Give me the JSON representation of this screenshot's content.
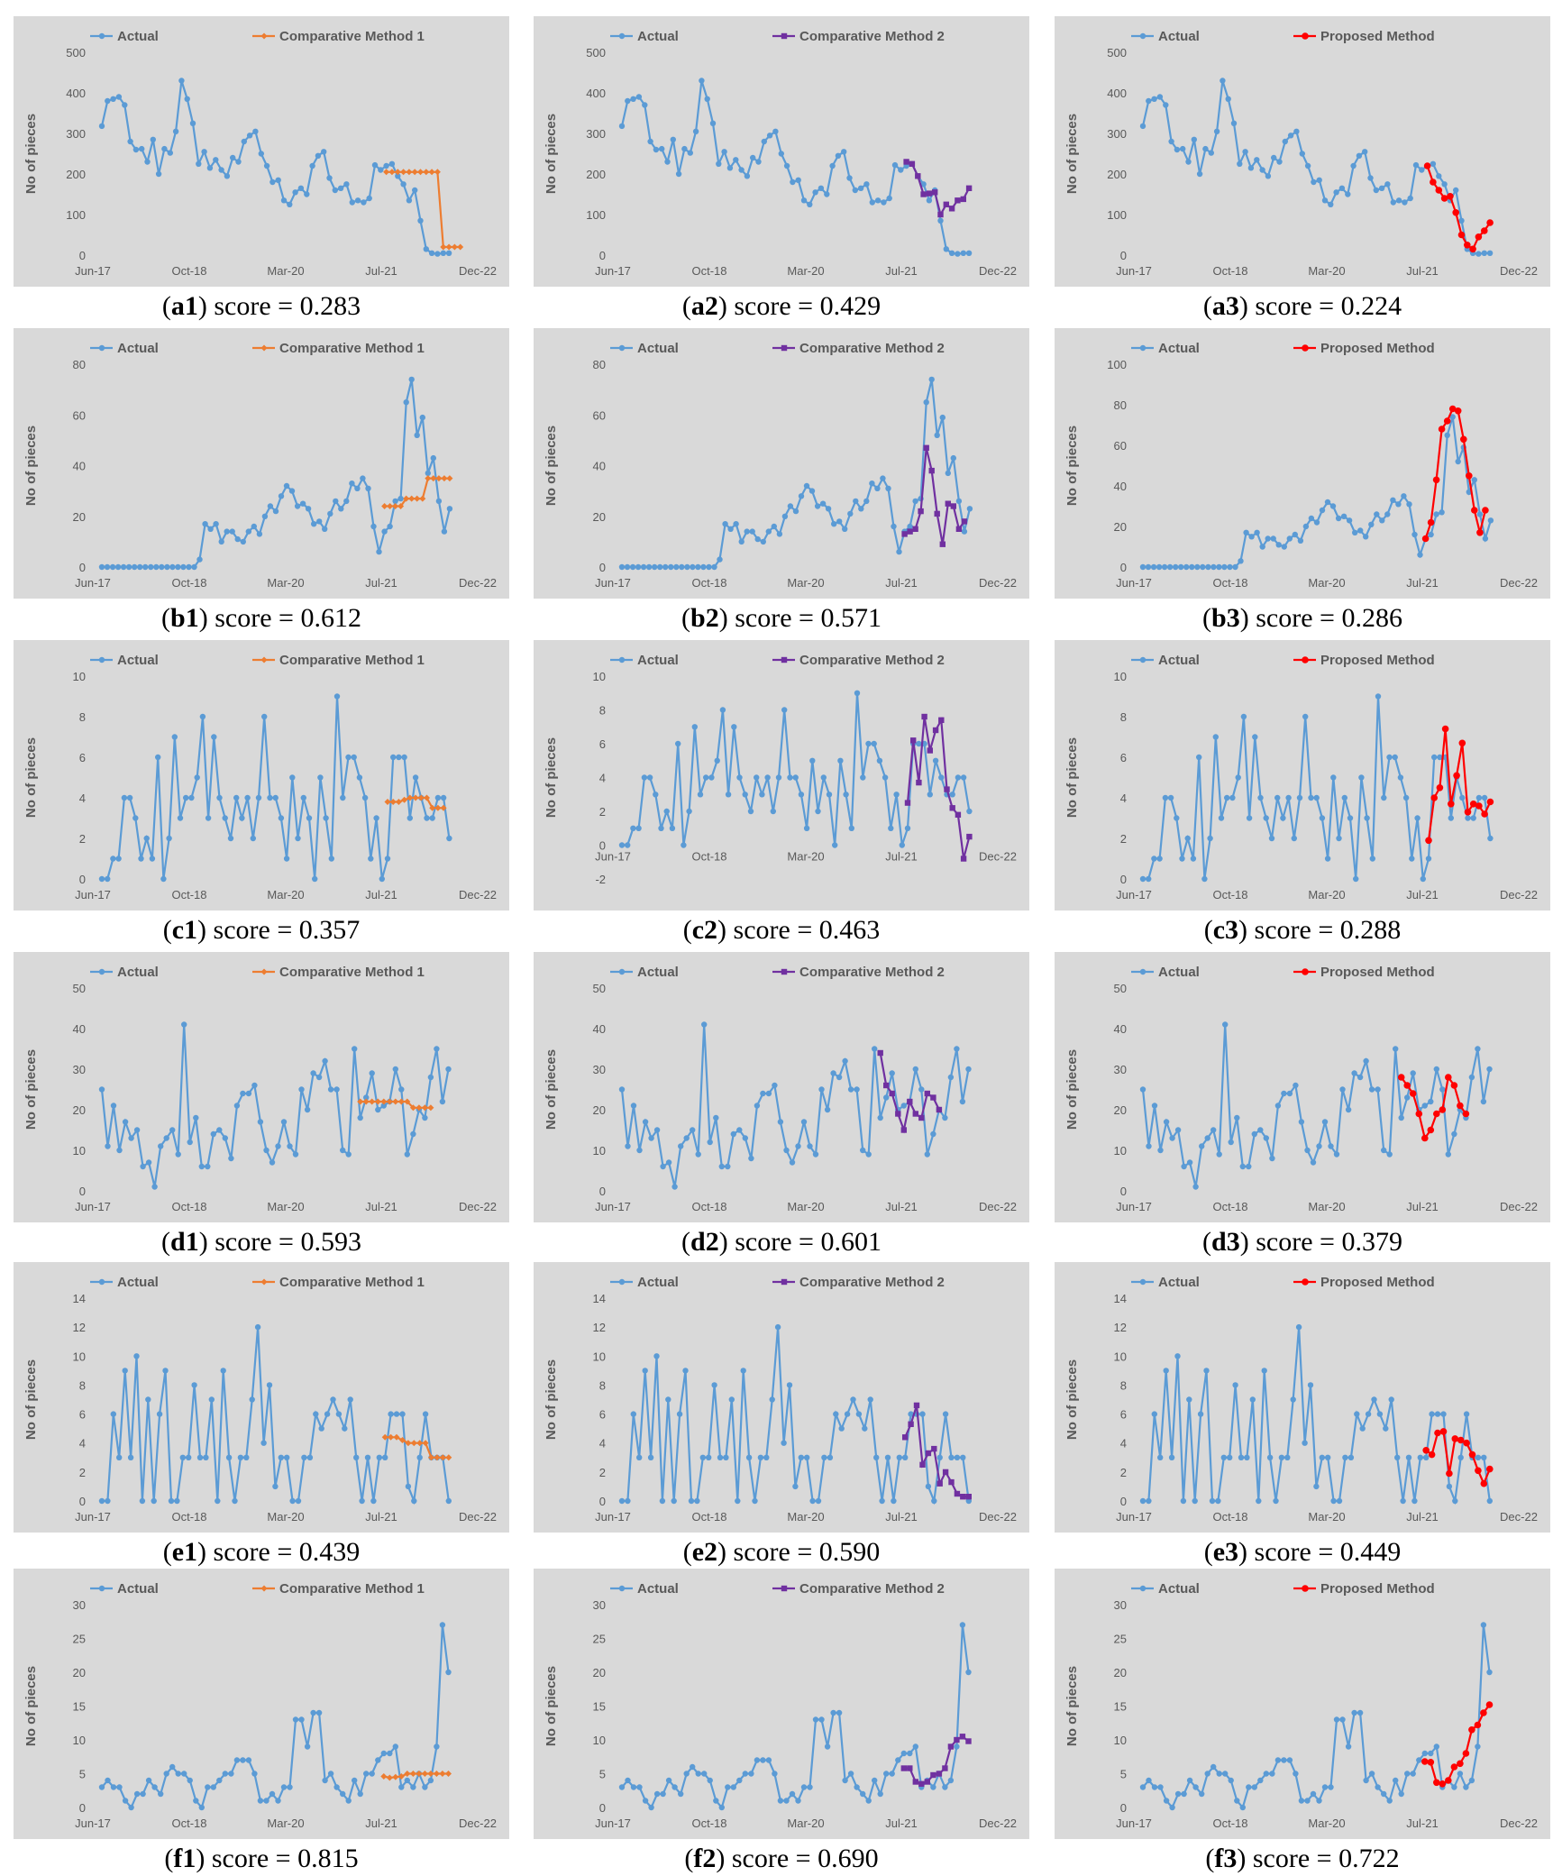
{
  "dates": [
    "Jun-17",
    "Oct-18",
    "Mar-20",
    "Jul-21",
    "Dec-22"
  ],
  "ylabel": "No of pieces",
  "series_names": {
    "actual": "Actual",
    "m1": "Comparative Method 1",
    "m2": "Comparative Method 2",
    "prop": "Proposed Method"
  },
  "colors": {
    "actual": "#5b9bd5",
    "m1": "#ed7d31",
    "m2": "#7030a0",
    "prop": "#ff0000",
    "bg": "#d9d9d9",
    "text": "#595959"
  },
  "score_prefix": "score = ",
  "chart_data": [
    {
      "id": "a",
      "type": "line",
      "ymin": 0,
      "ymax": 500,
      "step": 100,
      "actual": [
        318,
        380,
        385,
        390,
        370,
        280,
        260,
        262,
        230,
        285,
        200,
        262,
        252,
        305,
        430,
        385,
        325,
        225,
        255,
        215,
        235,
        210,
        195,
        240,
        230,
        280,
        295,
        305,
        250,
        220,
        180,
        185,
        135,
        125,
        155,
        165,
        150,
        220,
        245,
        255,
        190,
        160,
        165,
        175,
        130,
        135,
        130,
        140,
        222,
        210,
        220,
        225,
        195,
        175,
        135,
        160,
        85,
        15,
        5,
        3,
        5,
        5
      ],
      "methods": [
        {
          "key": "m1",
          "label": "a1",
          "score": "0.283",
          "start": 50,
          "values": [
            205,
            205,
            205,
            205,
            205,
            205,
            205,
            205,
            205,
            205,
            20,
            20,
            20,
            20
          ]
        },
        {
          "key": "m2",
          "label": "a2",
          "score": "0.429",
          "start": 50,
          "values": [
            230,
            225,
            195,
            150,
            152,
            155,
            100,
            125,
            115,
            135,
            138,
            165
          ]
        },
        {
          "key": "prop",
          "label": "a3",
          "score": "0.224",
          "start": 50,
          "values": [
            220,
            180,
            160,
            140,
            145,
            105,
            50,
            25,
            15,
            45,
            60,
            80
          ]
        }
      ]
    },
    {
      "id": "b",
      "type": "line",
      "ymin": 0,
      "ymax": 80,
      "step": 20,
      "actual": [
        0,
        0,
        0,
        0,
        0,
        0,
        0,
        0,
        0,
        0,
        0,
        0,
        0,
        0,
        0,
        0,
        0,
        0,
        3,
        17,
        15,
        17,
        10,
        14,
        14,
        11,
        10,
        14,
        16,
        13,
        20,
        24,
        22,
        28,
        32,
        30,
        24,
        25,
        23,
        17,
        18,
        15,
        21,
        26,
        23,
        26,
        33,
        31,
        35,
        31,
        16,
        6,
        14,
        16,
        26,
        27,
        65,
        74,
        52,
        59,
        37,
        43,
        26,
        14,
        23
      ],
      "methods": [
        {
          "key": "m1",
          "label": "b1",
          "score": "0.612",
          "start": 52,
          "values": [
            24,
            24,
            24,
            24,
            27,
            27,
            27,
            27,
            35,
            35,
            35,
            35,
            35
          ]
        },
        {
          "key": "m2",
          "label": "b2",
          "score": "0.571",
          "start": 52,
          "values": [
            13,
            14,
            15,
            22,
            47,
            38,
            21,
            9,
            25,
            24,
            15,
            18
          ]
        },
        {
          "key": "prop",
          "label": "b3",
          "score": "0.286",
          "start": 52,
          "values": [
            14,
            22,
            43,
            68,
            72,
            78,
            77,
            63,
            45,
            28,
            17,
            28
          ],
          "ymax_override": 100
        }
      ]
    },
    {
      "id": "c",
      "type": "line",
      "ymin": 0,
      "ymax": 10,
      "step": 2,
      "actual": [
        0,
        0,
        1,
        1,
        4,
        4,
        3,
        1,
        2,
        1,
        6,
        0,
        2,
        7,
        3,
        4,
        4,
        5,
        8,
        3,
        7,
        4,
        3,
        2,
        4,
        3,
        4,
        2,
        4,
        8,
        4,
        4,
        3,
        1,
        5,
        2,
        4,
        3,
        0,
        5,
        3,
        1,
        9,
        4,
        6,
        6,
        5,
        4,
        1,
        3,
        0,
        1,
        6,
        6,
        6,
        3,
        5,
        4,
        3,
        3,
        4,
        4,
        2
      ],
      "methods": [
        {
          "key": "m1",
          "label": "c1",
          "score": "0.357",
          "start": 51,
          "values": [
            3.8,
            3.8,
            3.8,
            3.9,
            4,
            4,
            4,
            4,
            3.5,
            3.5,
            3.5
          ]
        },
        {
          "key": "m2",
          "label": "c2",
          "score": "0.463",
          "start": 51,
          "values": [
            2.5,
            6.2,
            3.7,
            7.6,
            5.6,
            6.8,
            7.4,
            3.3,
            2.2,
            1.8,
            -0.8,
            0.5
          ],
          "ymin_override": -2
        },
        {
          "key": "prop",
          "label": "c3",
          "score": "0.288",
          "start": 51,
          "values": [
            1.9,
            4,
            4.5,
            7.4,
            3.7,
            5.1,
            6.7,
            3.3,
            3.7,
            3.6,
            3.2,
            3.8
          ]
        }
      ]
    },
    {
      "id": "d",
      "type": "line",
      "ymin": 0,
      "ymax": 50,
      "step": 10,
      "actual": [
        25,
        11,
        21,
        10,
        17,
        13,
        15,
        6,
        7,
        1,
        11,
        13,
        15,
        9,
        41,
        12,
        18,
        6,
        6,
        14,
        15,
        13,
        8,
        21,
        24,
        24,
        26,
        17,
        10,
        7,
        11,
        17,
        11,
        9,
        25,
        20,
        29,
        28,
        32,
        25,
        25,
        10,
        9,
        35,
        18,
        23,
        29,
        20,
        21,
        22,
        30,
        25,
        9,
        14,
        20,
        18,
        28,
        35,
        22,
        30
      ],
      "methods": [
        {
          "key": "m1",
          "label": "d1",
          "score": "0.593",
          "start": 44,
          "values": [
            22,
            22,
            22,
            22,
            22,
            22,
            22,
            22,
            22,
            20.5,
            20.5,
            20.5,
            20.5
          ]
        },
        {
          "key": "m2",
          "label": "d2",
          "score": "0.601",
          "start": 44,
          "values": [
            34,
            26,
            24,
            19,
            15,
            22,
            19,
            18,
            24,
            23,
            20
          ]
        },
        {
          "key": "prop",
          "label": "d3",
          "score": "0.379",
          "start": 44,
          "values": [
            28,
            26,
            24,
            19,
            13,
            15,
            19,
            20,
            28,
            26,
            21,
            19
          ]
        }
      ]
    },
    {
      "id": "e",
      "type": "line",
      "ymin": 0,
      "ymax": 14,
      "step": 2,
      "actual": [
        0,
        0,
        6,
        3,
        9,
        3,
        10,
        0,
        7,
        0,
        6,
        9,
        0,
        0,
        3,
        3,
        8,
        3,
        3,
        7,
        0,
        9,
        3,
        0,
        3,
        3,
        7,
        12,
        4,
        8,
        1,
        3,
        3,
        0,
        0,
        3,
        3,
        6,
        5,
        6,
        7,
        6,
        5,
        7,
        3,
        0,
        3,
        0,
        3,
        3,
        6,
        6,
        6,
        1,
        0,
        3,
        6,
        3,
        3,
        3,
        0
      ],
      "methods": [
        {
          "key": "m1",
          "label": "e1",
          "score": "0.439",
          "start": 49,
          "values": [
            4.4,
            4.4,
            4.4,
            4.2,
            4,
            4,
            4,
            4,
            3,
            3,
            3,
            3
          ]
        },
        {
          "key": "m2",
          "label": "e2",
          "score": "0.590",
          "start": 49,
          "values": [
            4.4,
            5.3,
            6.6,
            2.5,
            3.3,
            3.6,
            1.2,
            2,
            1.3,
            0.5,
            0.3,
            0.3
          ]
        },
        {
          "key": "prop",
          "label": "e3",
          "score": "0.449",
          "start": 49,
          "values": [
            3.5,
            3.2,
            4.7,
            4.8,
            1.9,
            4.3,
            4.2,
            4,
            3.2,
            2.1,
            1.2,
            2.2
          ]
        }
      ]
    },
    {
      "id": "f",
      "type": "line",
      "ymin": 0,
      "ymax": 30,
      "step": 5,
      "actual": [
        3,
        4,
        3,
        3,
        1,
        0,
        2,
        2,
        4,
        3,
        2,
        5,
        6,
        5,
        5,
        4,
        1,
        0,
        3,
        3,
        4,
        5,
        5,
        7,
        7,
        7,
        5,
        1,
        1,
        2,
        1,
        3,
        3,
        13,
        13,
        9,
        14,
        14,
        4,
        5,
        3,
        2,
        1,
        4,
        2,
        5,
        5,
        7,
        8,
        8,
        9,
        3,
        4,
        3,
        5,
        3,
        4,
        9,
        27,
        20
      ],
      "methods": [
        {
          "key": "m1",
          "label": "f1",
          "score": "0.815",
          "start": 48,
          "values": [
            4.6,
            4.4,
            4.5,
            4.6,
            5,
            5,
            5,
            5,
            5,
            5,
            5,
            5
          ]
        },
        {
          "key": "m2",
          "label": "f2",
          "score": "0.690",
          "start": 48,
          "values": [
            5.8,
            5.8,
            3.8,
            3.5,
            3.8,
            4.8,
            5,
            5.8,
            9,
            10,
            10.5,
            9.8
          ]
        },
        {
          "key": "prop",
          "label": "f3",
          "score": "0.722",
          "start": 48,
          "values": [
            6.8,
            6.7,
            3.7,
            3.5,
            4,
            6,
            6.5,
            8,
            11.5,
            12.2,
            14,
            15.2
          ]
        }
      ]
    }
  ]
}
